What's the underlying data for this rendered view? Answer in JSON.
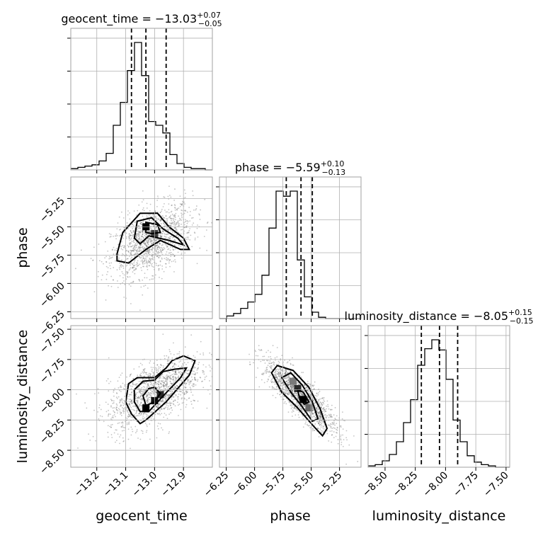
{
  "chart_data": {
    "type": "corner",
    "parameters": [
      {
        "key": "geocent_time",
        "axis_label": "geocent_time",
        "title_main": "geocent_time = −13.03",
        "title_sup": "+0.07",
        "title_sub": "−0.05",
        "median": -13.03,
        "q16": -13.08,
        "q84": -12.96,
        "range": [
          -13.29,
          -12.8
        ],
        "ticks": [
          -13.2,
          -13.1,
          -13.0,
          -12.9
        ],
        "tick_labels": [
          "−13.2",
          "−13.1",
          "−13.0",
          "−12.9"
        ],
        "hist": {
          "edges_start": -13.29,
          "bin_width": 0.0245,
          "counts": [
            1,
            2,
            3,
            4,
            7,
            13,
            35,
            53,
            78,
            100,
            74,
            38,
            35,
            29,
            12,
            5,
            2,
            1,
            1,
            0
          ]
        }
      },
      {
        "key": "phase",
        "axis_label": "phase",
        "title_main": "phase = −5.59",
        "title_sup": "+0.10",
        "title_sub": "−0.13",
        "median": -5.59,
        "q16": -5.72,
        "q84": -5.49,
        "range": [
          -6.31,
          -5.06
        ],
        "ticks": [
          -6.25,
          -6.0,
          -5.75,
          -5.5,
          -5.25
        ],
        "tick_labels": [
          "−6.25",
          "−6.00",
          "−5.75",
          "−5.50",
          "−5.25"
        ],
        "hist": {
          "edges_start": -6.31,
          "bin_width": 0.0625,
          "counts": [
            0,
            2,
            4,
            8,
            13,
            19,
            34,
            71,
            100,
            96,
            100,
            46,
            17,
            5,
            1,
            0,
            0,
            0,
            0,
            0
          ]
        }
      },
      {
        "key": "luminosity_distance",
        "axis_label": "luminosity_distance",
        "title_main": "luminosity_distance = −8.05",
        "title_sup": "+0.15",
        "title_sub": "−0.15",
        "median": -8.05,
        "q16": -8.2,
        "q84": -7.9,
        "range": [
          -8.64,
          -7.47
        ],
        "ticks": [
          -8.5,
          -8.25,
          -8.0,
          -7.75,
          -7.5
        ],
        "tick_labels": [
          "−8.50",
          "−8.25",
          "−8.00",
          "−7.75",
          "−7.50"
        ],
        "hist": {
          "edges_start": -8.64,
          "bin_width": 0.0585,
          "counts": [
            1,
            2,
            5,
            10,
            20,
            35,
            53,
            80,
            93,
            100,
            92,
            69,
            37,
            20,
            9,
            4,
            2,
            1,
            0,
            0
          ]
        }
      }
    ],
    "pairs": [
      {
        "x": "geocent_time",
        "y": "phase",
        "center": [
          -13.01,
          -5.62
        ],
        "spread": [
          0.07,
          0.16
        ],
        "corr": 0.45,
        "contours": [
          [
            [
              -13.13,
              -5.74
            ],
            [
              -13.11,
              -5.55
            ],
            [
              -13.05,
              -5.38
            ],
            [
              -12.99,
              -5.38
            ],
            [
              -12.95,
              -5.5
            ],
            [
              -12.9,
              -5.6
            ],
            [
              -12.88,
              -5.7
            ],
            [
              -12.91,
              -5.7
            ],
            [
              -12.98,
              -5.62
            ],
            [
              -13.03,
              -5.7
            ],
            [
              -13.09,
              -5.82
            ],
            [
              -13.13,
              -5.8
            ]
          ],
          [
            [
              -13.07,
              -5.6
            ],
            [
              -13.06,
              -5.45
            ],
            [
              -13.01,
              -5.42
            ],
            [
              -12.97,
              -5.52
            ],
            [
              -12.92,
              -5.6
            ],
            [
              -12.9,
              -5.66
            ],
            [
              -12.95,
              -5.62
            ],
            [
              -13.02,
              -5.58
            ],
            [
              -13.05,
              -5.65
            ]
          ],
          [
            [
              -13.03,
              -5.55
            ],
            [
              -13.03,
              -5.46
            ],
            [
              -12.99,
              -5.48
            ],
            [
              -12.98,
              -5.55
            ],
            [
              -13.01,
              -5.56
            ]
          ]
        ],
        "hot_cells": [
          [
            -13.03,
            -5.5,
            1.0
          ],
          [
            -13.0,
            -5.56,
            0.7
          ]
        ]
      },
      {
        "x": "geocent_time",
        "y": "luminosity_distance",
        "center": [
          -13.0,
          -8.02
        ],
        "spread": [
          0.08,
          0.15
        ],
        "corr": 0.55,
        "contours": [
          [
            [
              -13.09,
              -7.95
            ],
            [
              -13.06,
              -7.9
            ],
            [
              -13.0,
              -7.9
            ],
            [
              -12.96,
              -7.82
            ],
            [
              -12.94,
              -7.76
            ],
            [
              -12.9,
              -7.72
            ],
            [
              -12.86,
              -7.76
            ],
            [
              -12.88,
              -7.88
            ],
            [
              -12.96,
              -8.1
            ],
            [
              -13.03,
              -8.25
            ],
            [
              -13.05,
              -8.28
            ],
            [
              -13.08,
              -8.2
            ],
            [
              -13.1,
              -8.1
            ]
          ],
          [
            [
              -13.07,
              -8.0
            ],
            [
              -13.04,
              -7.93
            ],
            [
              -13.0,
              -7.92
            ],
            [
              -12.97,
              -7.85
            ],
            [
              -12.93,
              -7.83
            ],
            [
              -12.89,
              -7.82
            ],
            [
              -12.91,
              -7.9
            ],
            [
              -12.97,
              -8.05
            ],
            [
              -13.02,
              -8.18
            ],
            [
              -13.05,
              -8.18
            ],
            [
              -13.07,
              -8.1
            ]
          ],
          [
            [
              -13.04,
              -8.05
            ],
            [
              -13.02,
              -7.99
            ],
            [
              -13.0,
              -7.98
            ],
            [
              -12.98,
              -8.03
            ],
            [
              -13.0,
              -8.1
            ],
            [
              -13.03,
              -8.13
            ]
          ]
        ],
        "hot_cells": [
          [
            -13.03,
            -8.15,
            1.0
          ],
          [
            -13.0,
            -8.09,
            0.9
          ],
          [
            -12.98,
            -8.04,
            0.8
          ]
        ]
      },
      {
        "x": "phase",
        "y": "luminosity_distance",
        "center": [
          -5.6,
          -8.05
        ],
        "spread": [
          0.16,
          0.15
        ],
        "corr": -0.85,
        "contours": [
          [
            [
              -5.85,
              -7.86
            ],
            [
              -5.8,
              -7.8
            ],
            [
              -5.66,
              -7.84
            ],
            [
              -5.52,
              -7.98
            ],
            [
              -5.42,
              -8.16
            ],
            [
              -5.36,
              -8.32
            ],
            [
              -5.4,
              -8.38
            ],
            [
              -5.48,
              -8.3
            ],
            [
              -5.62,
              -8.15
            ],
            [
              -5.76,
              -8.02
            ]
          ],
          [
            [
              -5.76,
              -7.9
            ],
            [
              -5.68,
              -7.86
            ],
            [
              -5.58,
              -7.96
            ],
            [
              -5.49,
              -8.1
            ],
            [
              -5.44,
              -8.24
            ],
            [
              -5.49,
              -8.26
            ],
            [
              -5.58,
              -8.14
            ],
            [
              -5.68,
              -8.02
            ]
          ],
          [
            [
              -5.62,
              -8.0
            ],
            [
              -5.57,
              -8.02
            ],
            [
              -5.52,
              -8.1
            ],
            [
              -5.56,
              -8.12
            ],
            [
              -5.6,
              -8.08
            ]
          ]
        ],
        "hot_cells": [
          [
            -5.66,
            -7.93,
            0.4
          ],
          [
            -5.62,
            -7.99,
            0.8
          ],
          [
            -5.57,
            -8.08,
            1.0
          ],
          [
            -5.52,
            -8.15,
            0.5
          ]
        ]
      }
    ]
  }
}
